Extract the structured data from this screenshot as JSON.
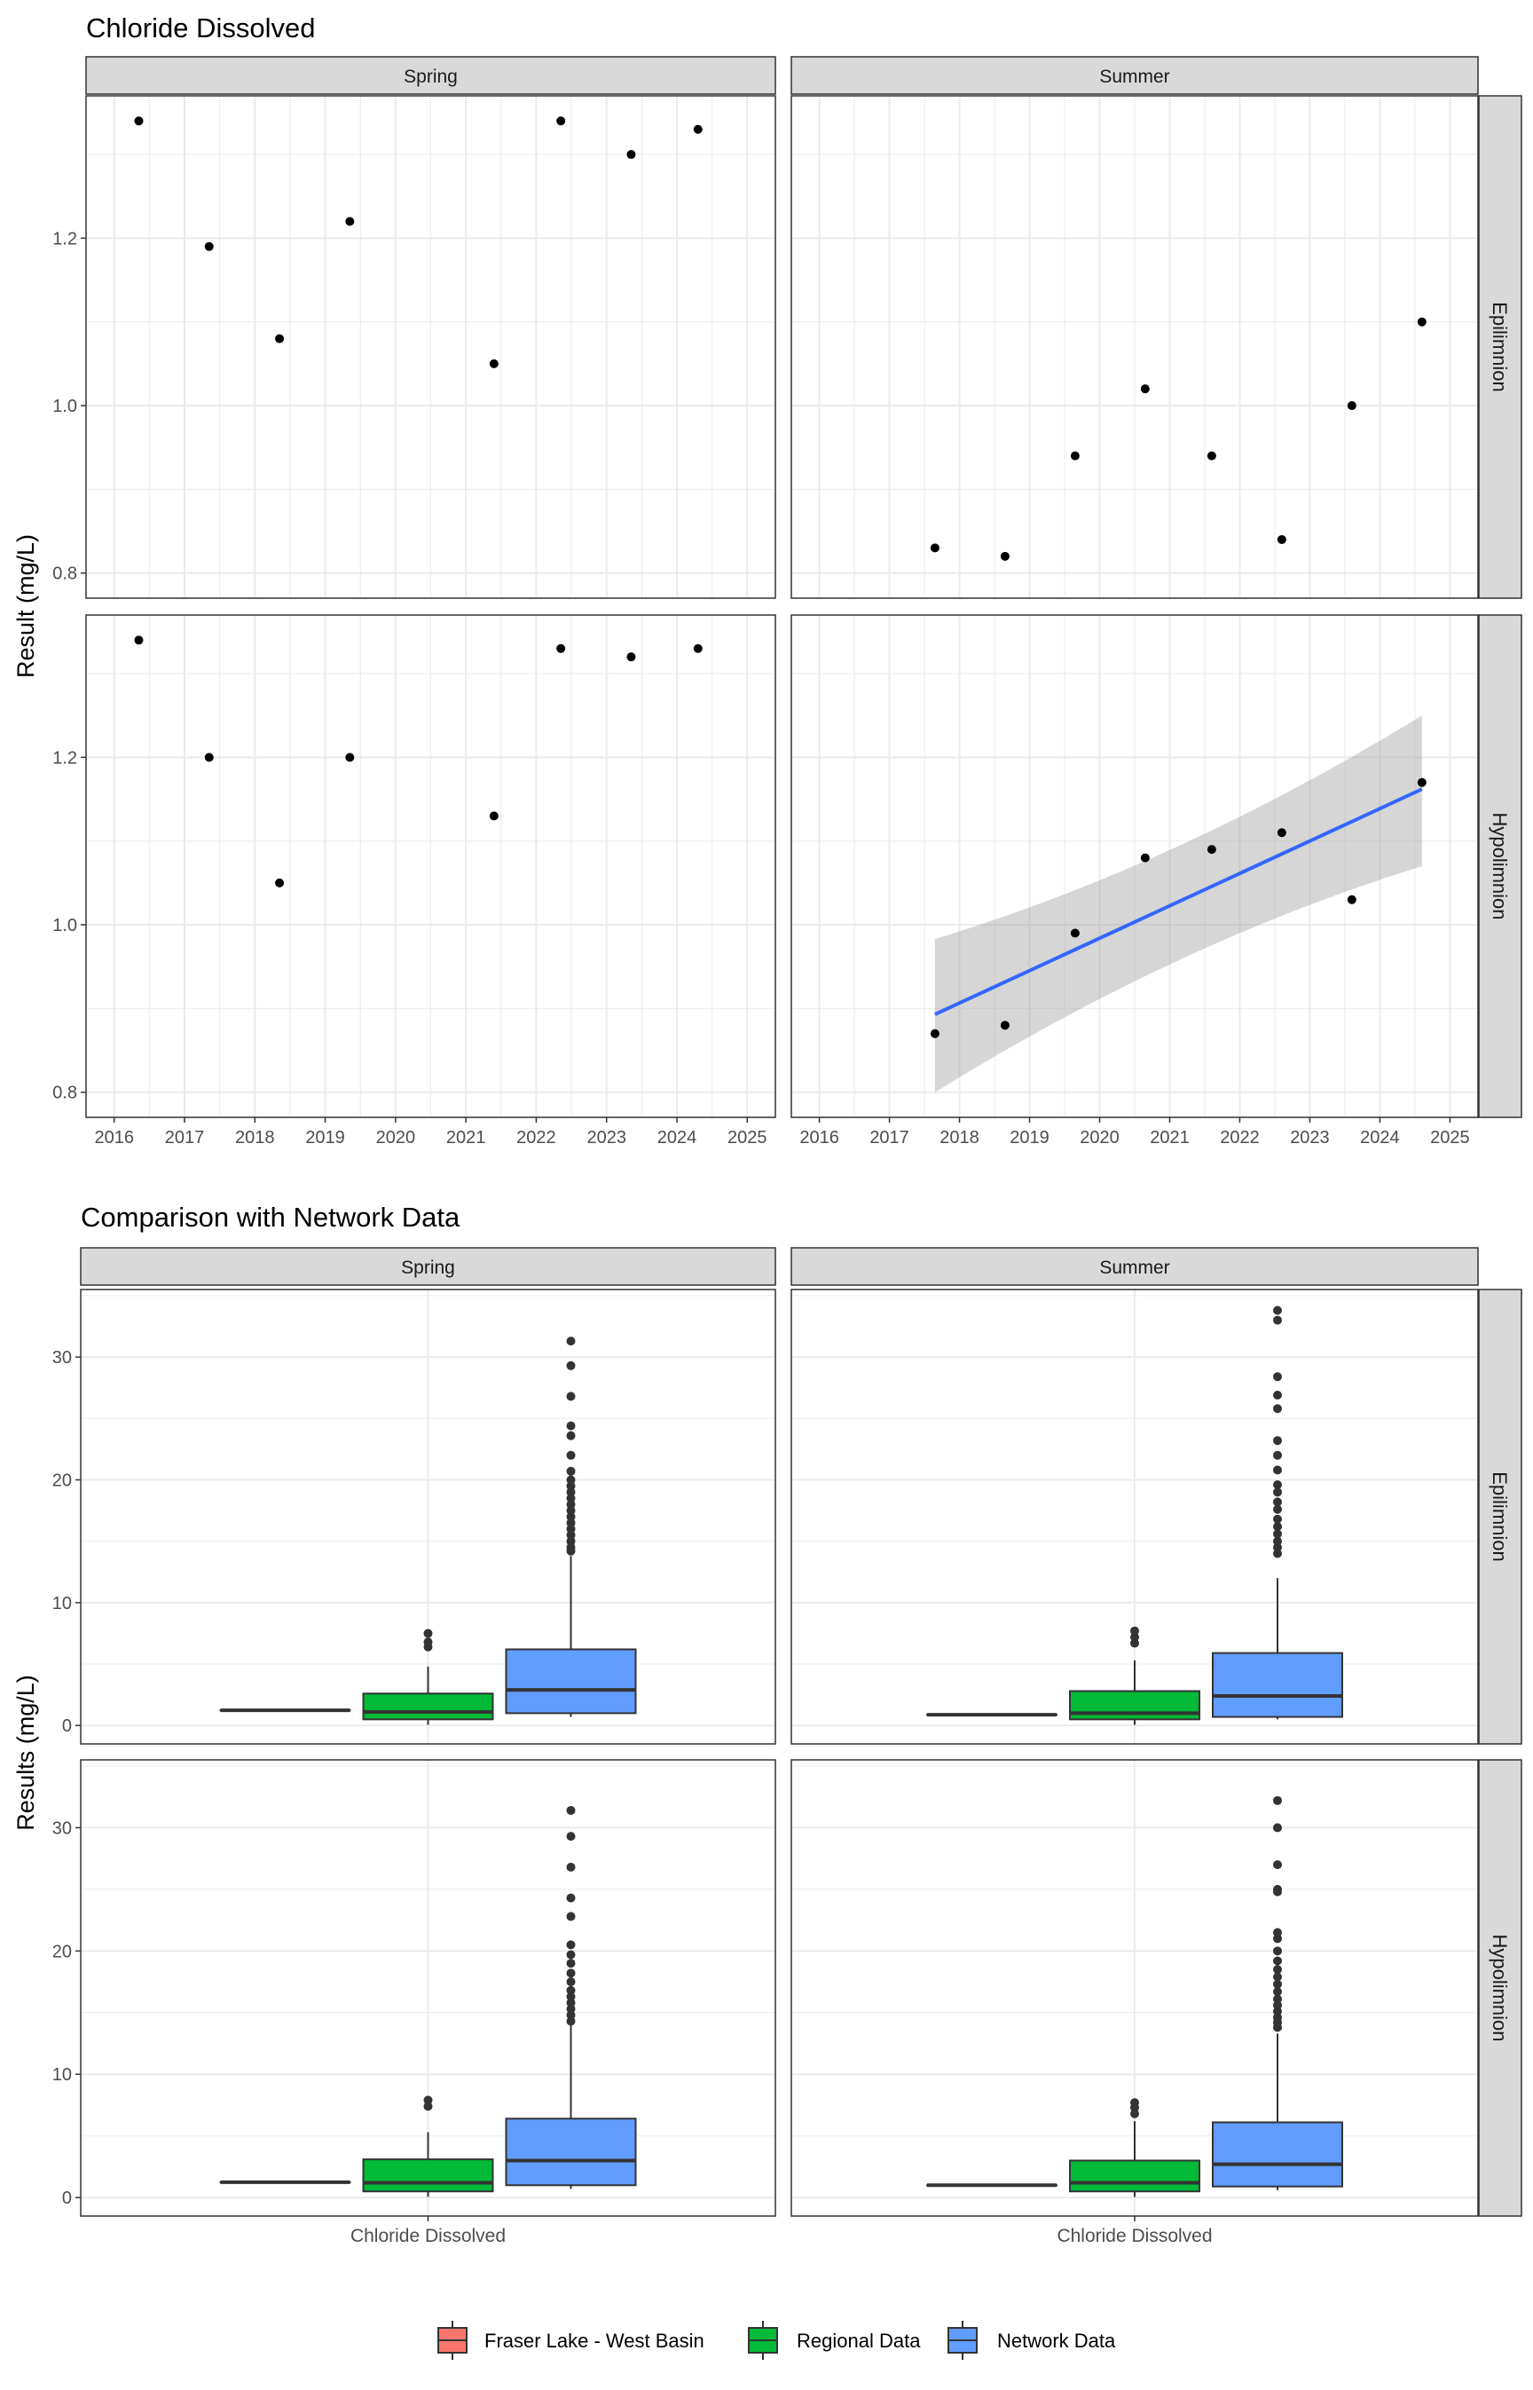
{
  "chart_data": [
    {
      "type": "scatter",
      "title": "Chloride Dissolved",
      "ylabel": "Result (mg/L)",
      "xlabel": "",
      "xlim": [
        2015.6,
        2025.4
      ],
      "xticks": [
        2016,
        2017,
        2018,
        2019,
        2020,
        2021,
        2022,
        2023,
        2024,
        2025
      ],
      "ylim": [
        0.77,
        1.37
      ],
      "yticks": [
        0.8,
        1.0,
        1.2
      ],
      "ytick_labels": [
        "0.8",
        "1.0",
        "1.2"
      ],
      "grid": true,
      "columns": [
        "Spring",
        "Summer"
      ],
      "rows": [
        "Epilimnion",
        "Hypolimnion"
      ],
      "panels": [
        {
          "season": "Spring",
          "layer": "Epilimnion",
          "points": [
            [
              2016.35,
              1.34
            ],
            [
              2017.35,
              1.19
            ],
            [
              2018.35,
              1.08
            ],
            [
              2019.35,
              1.22
            ],
            [
              2021.4,
              1.05
            ],
            [
              2022.35,
              1.34
            ],
            [
              2023.35,
              1.3
            ],
            [
              2024.3,
              1.33
            ]
          ]
        },
        {
          "season": "Summer",
          "layer": "Epilimnion",
          "points": [
            [
              2017.65,
              0.83
            ],
            [
              2018.65,
              0.82
            ],
            [
              2019.65,
              0.94
            ],
            [
              2020.65,
              1.02
            ],
            [
              2021.6,
              0.94
            ],
            [
              2022.6,
              0.84
            ],
            [
              2023.6,
              1.0
            ],
            [
              2024.6,
              1.1
            ]
          ]
        },
        {
          "season": "Spring",
          "layer": "Hypolimnion",
          "points": [
            [
              2016.35,
              1.34
            ],
            [
              2017.35,
              1.2
            ],
            [
              2018.35,
              1.05
            ],
            [
              2019.35,
              1.2
            ],
            [
              2021.4,
              1.13
            ],
            [
              2022.35,
              1.33
            ],
            [
              2023.35,
              1.32
            ],
            [
              2024.3,
              1.33
            ]
          ]
        },
        {
          "season": "Summer",
          "layer": "Hypolimnion",
          "points": [
            [
              2017.65,
              0.87
            ],
            [
              2018.65,
              0.88
            ],
            [
              2019.65,
              0.99
            ],
            [
              2020.65,
              1.08
            ],
            [
              2021.6,
              1.09
            ],
            [
              2022.6,
              1.11
            ],
            [
              2023.6,
              1.03
            ],
            [
              2024.6,
              1.17
            ]
          ],
          "trend": {
            "x": [
              2017.65,
              2024.6
            ],
            "y": [
              0.893,
              1.162
            ],
            "ci_lower": [
              0.8,
              1.07
            ],
            "ci_upper": [
              0.983,
              1.25
            ],
            "color": "#3366ff"
          }
        }
      ]
    },
    {
      "type": "box",
      "title": "Comparison with Network Data",
      "ylabel": "Results (mg/L)",
      "xlabel": "",
      "category": "Chloride Dissolved",
      "ylim": [
        -1.5,
        35.5
      ],
      "yticks": [
        0,
        10,
        20,
        30
      ],
      "ytick_labels": [
        "0",
        "10",
        "20",
        "30"
      ],
      "grid": true,
      "columns": [
        "Spring",
        "Summer"
      ],
      "rows": [
        "Epilimnion",
        "Hypolimnion"
      ],
      "legend": {
        "position": "bottom",
        "entries": [
          {
            "name": "Fraser Lake - West Basin",
            "color": "#f8766d"
          },
          {
            "name": "Regional Data",
            "color": "#00ba38"
          },
          {
            "name": "Network Data",
            "color": "#619cff"
          }
        ]
      },
      "panels": [
        {
          "season": "Spring",
          "layer": "Epilimnion",
          "groups": [
            {
              "name": "Fraser Lake - West Basin",
              "q1": 1.24,
              "median": 1.24,
              "q3": 1.24,
              "whisker_low": 1.24,
              "whisker_high": 1.24,
              "outliers": []
            },
            {
              "name": "Regional Data",
              "q1": 0.5,
              "median": 1.1,
              "q3": 2.6,
              "whisker_low": 0.05,
              "whisker_high": 4.8,
              "outliers": [
                6.4,
                6.8,
                7.5
              ]
            },
            {
              "name": "Network Data",
              "q1": 1.0,
              "median": 2.9,
              "q3": 6.2,
              "whisker_low": 0.7,
              "whisker_high": 13.8,
              "outliers": [
                14.2,
                14.5,
                15.0,
                15.5,
                16.0,
                16.5,
                17.0,
                17.5,
                18.0,
                18.5,
                19.0,
                19.5,
                20.0,
                20.7,
                22.0,
                23.6,
                24.4,
                26.8,
                29.3,
                31.3
              ]
            }
          ]
        },
        {
          "season": "Summer",
          "layer": "Epilimnion",
          "groups": [
            {
              "name": "Fraser Lake - West Basin",
              "q1": 0.88,
              "median": 0.88,
              "q3": 0.88,
              "whisker_low": 0.88,
              "whisker_high": 0.88,
              "outliers": []
            },
            {
              "name": "Regional Data",
              "q1": 0.5,
              "median": 1.0,
              "q3": 2.8,
              "whisker_low": 0.05,
              "whisker_high": 5.3,
              "outliers": [
                6.7,
                7.2,
                7.7
              ]
            },
            {
              "name": "Network Data",
              "q1": 0.7,
              "median": 2.4,
              "q3": 5.9,
              "whisker_low": 0.5,
              "whisker_high": 12.0,
              "outliers": [
                14.0,
                14.5,
                15.0,
                15.6,
                16.2,
                16.8,
                17.6,
                18.2,
                19.0,
                19.6,
                20.8,
                22.0,
                23.2,
                25.8,
                26.9,
                28.4,
                33.0,
                33.8
              ]
            }
          ]
        },
        {
          "season": "Spring",
          "layer": "Hypolimnion",
          "groups": [
            {
              "name": "Fraser Lake - West Basin",
              "q1": 1.24,
              "median": 1.24,
              "q3": 1.24,
              "whisker_low": 1.24,
              "whisker_high": 1.24,
              "outliers": []
            },
            {
              "name": "Regional Data",
              "q1": 0.5,
              "median": 1.2,
              "q3": 3.1,
              "whisker_low": 0.05,
              "whisker_high": 5.3,
              "outliers": [
                7.4,
                7.9
              ]
            },
            {
              "name": "Network Data",
              "q1": 1.0,
              "median": 3.0,
              "q3": 6.4,
              "whisker_low": 0.7,
              "whisker_high": 14.0,
              "outliers": [
                14.3,
                14.8,
                15.3,
                15.8,
                16.3,
                16.8,
                17.5,
                18.2,
                19.0,
                19.7,
                20.5,
                22.8,
                24.3,
                26.8,
                29.3,
                31.4
              ]
            }
          ]
        },
        {
          "season": "Summer",
          "layer": "Hypolimnion",
          "groups": [
            {
              "name": "Fraser Lake - West Basin",
              "q1": 1.0,
              "median": 1.0,
              "q3": 1.0,
              "whisker_low": 1.0,
              "whisker_high": 1.0,
              "outliers": []
            },
            {
              "name": "Regional Data",
              "q1": 0.5,
              "median": 1.2,
              "q3": 3.0,
              "whisker_low": 0.05,
              "whisker_high": 6.2,
              "outliers": [
                6.8,
                7.3,
                7.7
              ]
            },
            {
              "name": "Network Data",
              "q1": 0.9,
              "median": 2.7,
              "q3": 6.1,
              "whisker_low": 0.6,
              "whisker_high": 13.3,
              "outliers": [
                13.8,
                14.2,
                14.6,
                15.1,
                15.6,
                16.1,
                16.7,
                17.3,
                17.9,
                18.5,
                19.2,
                20.0,
                21.0,
                21.5,
                24.8,
                25.0,
                27.0,
                30.0,
                32.2
              ]
            }
          ]
        }
      ]
    }
  ]
}
